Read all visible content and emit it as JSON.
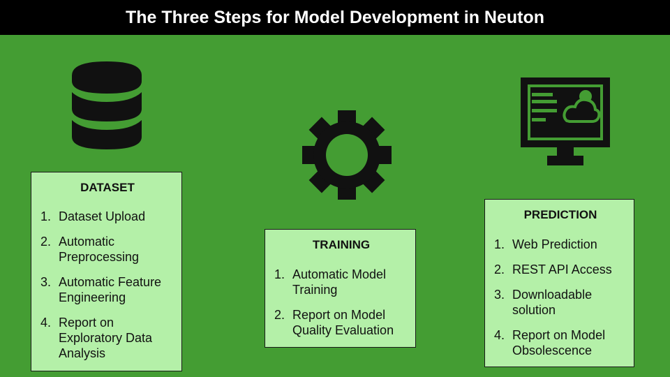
{
  "title": "The Three Steps for Model Development in Neuton",
  "steps": [
    {
      "heading": "DATASET",
      "items": [
        {
          "num": "1.",
          "text": "Dataset Upload"
        },
        {
          "num": "2.",
          "text": "Automatic Preprocessing"
        },
        {
          "num": "3.",
          "text": "Automatic Feature Engineering"
        },
        {
          "num": "4.",
          "text": "Report on Exploratory Data Analysis"
        }
      ]
    },
    {
      "heading": "TRAINING",
      "items": [
        {
          "num": "1.",
          "text": "Automatic Model Training"
        },
        {
          "num": "2.",
          "text": "Report on Model Quality Evaluation"
        }
      ]
    },
    {
      "heading": "PREDICTION",
      "items": [
        {
          "num": "1.",
          "text": "Web Prediction"
        },
        {
          "num": "2.",
          "text": "REST API Access"
        },
        {
          "num": "3.",
          "text": "Downloadable solution"
        },
        {
          "num": "4.",
          "text": "Report on Model Obsolescence"
        }
      ]
    }
  ],
  "icons": [
    "database-icon",
    "gear-icon",
    "monitor-cloud-icon"
  ],
  "colors": {
    "background": "#449d33",
    "title_bar": "#000000",
    "title_text": "#ffffff",
    "box_fill": "#b4f0a8",
    "icon": "#111111"
  }
}
